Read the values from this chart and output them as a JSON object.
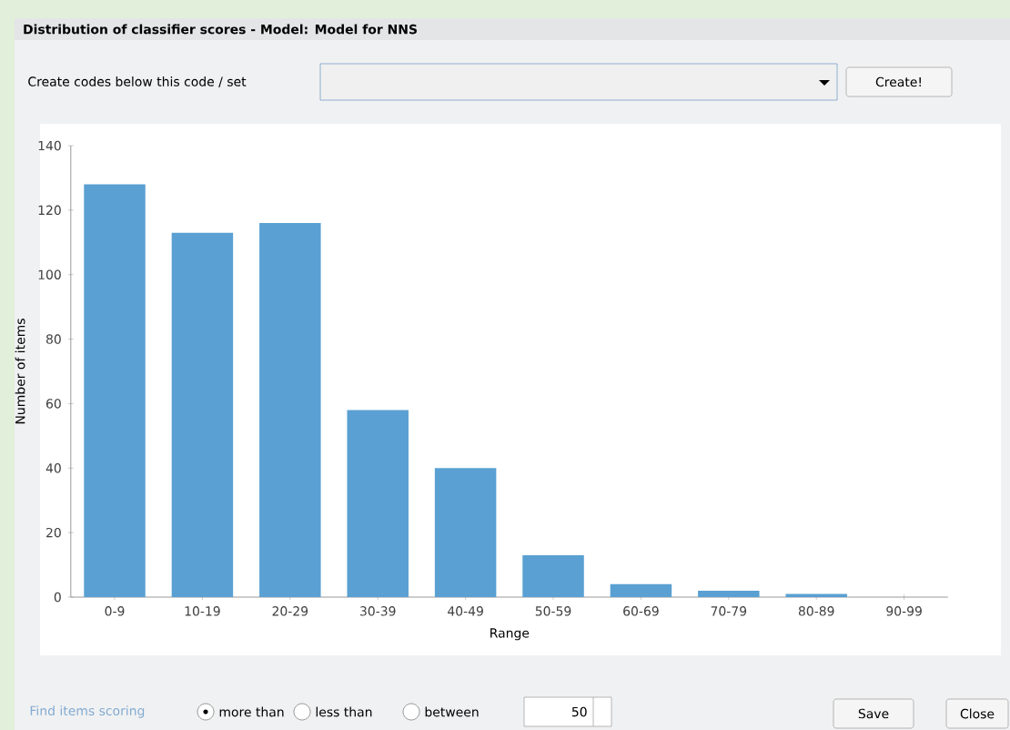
{
  "chart_data": {
    "type": "bar",
    "title": "Distribution of classifier scores - Model: Model for NNS",
    "categories": [
      "0-9",
      "10-19",
      "20-29",
      "30-39",
      "40-49",
      "50-59",
      "60-69",
      "70-79",
      "80-89",
      "90-99"
    ],
    "values": [
      128,
      113,
      116,
      58,
      40,
      13,
      4,
      2,
      1,
      0
    ],
    "color": "#5aa0d2",
    "xlabel": "Range",
    "ylabel": "Number of items",
    "ylim": [
      0,
      140
    ],
    "yticks": [
      0,
      20,
      40,
      60,
      80,
      100,
      120,
      140
    ],
    "annotations": [
      "Create codes below this code / set",
      "Create!",
      "Find items scoring",
      "more than",
      "less than",
      "between",
      "50",
      "Save",
      "Close"
    ]
  }
}
